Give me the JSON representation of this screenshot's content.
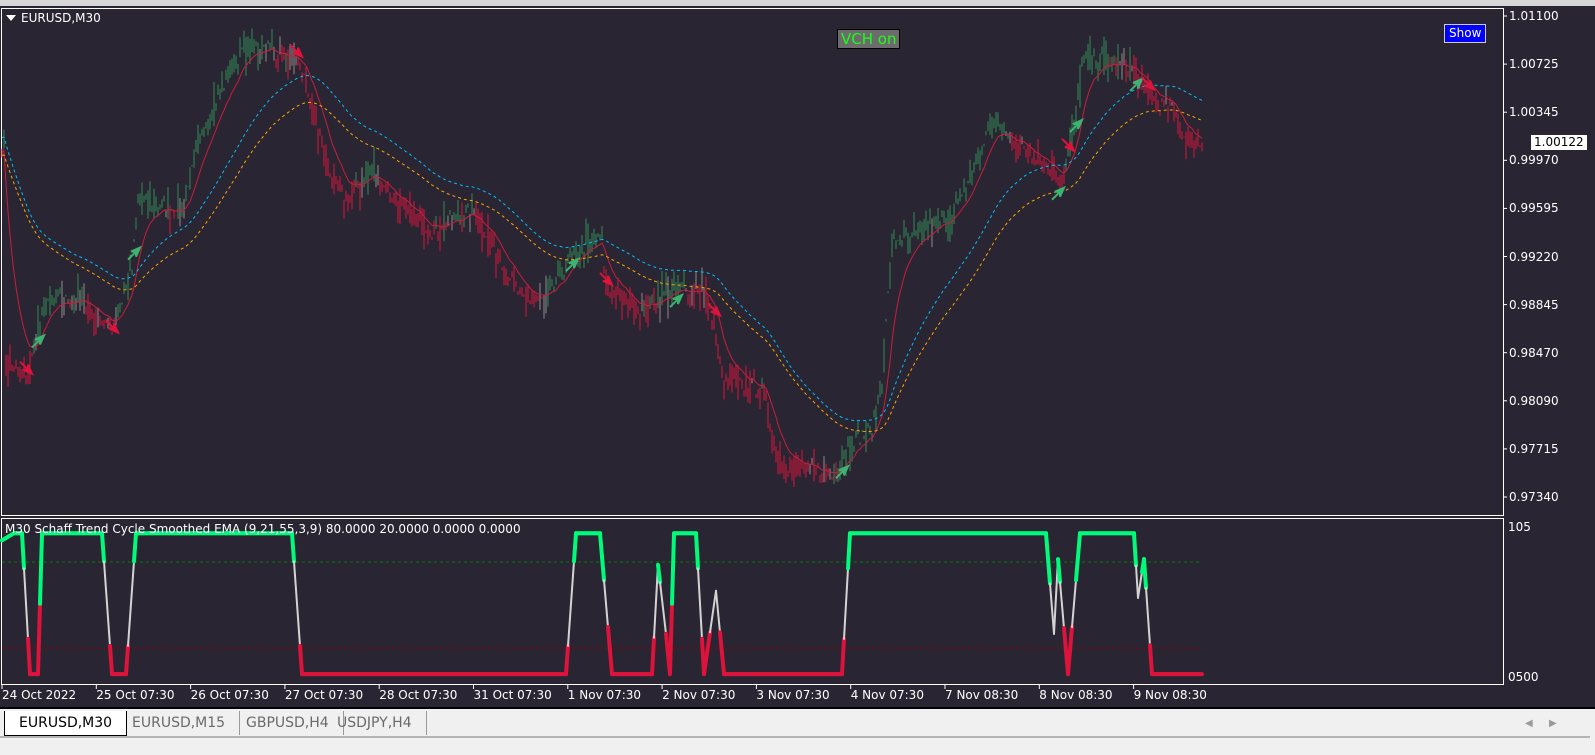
{
  "window": {
    "symbol_title": "EURUSD,M30"
  },
  "overlay": {
    "vch_label": "VCH on",
    "show_button": "Show",
    "current_price": "1.00122"
  },
  "indicator": {
    "title": "M30 Schaff Trend Cycle  Smoothed EMA  (9,21,55,3,9) 80.0000 20.0000 0.0000 0.0000",
    "axis_top": "105",
    "axis_bottom": "0500"
  },
  "tabs": [
    {
      "label": "EURUSD,M30",
      "active": true
    },
    {
      "label": "EURUSD,M15",
      "active": false
    },
    {
      "label": "GBPUSD,H4",
      "active": false
    },
    {
      "label": "USDJPY,H4",
      "active": false
    }
  ],
  "colors": {
    "background": "#2a2532",
    "bull": "#2e8b57",
    "bear": "#dc143c",
    "neutral": "#8c8c8c",
    "upper_band": "#00bfff",
    "lower_band": "#ffa500",
    "stc_high": "#00fa7a",
    "stc_low": "#dc143c",
    "stc_mid": "#d3d3d3",
    "level_high": "#008000",
    "level_low": "#8b0000"
  },
  "chart_data": [
    {
      "type": "bar",
      "symbol": "EURUSD",
      "timeframe": "M30",
      "ylim": [
        0.9734,
        1.011
      ],
      "y_ticks": [
        "1.01100",
        "1.00725",
        "1.00345",
        "0.99970",
        "0.99595",
        "0.99220",
        "0.98845",
        "0.98470",
        "0.98090",
        "0.97715",
        "0.97340"
      ],
      "x_ticks": [
        "24 Oct 2022",
        "25 Oct 07:30",
        "26 Oct 07:30",
        "27 Oct 07:30",
        "28 Oct 07:30",
        "31 Oct 07:30",
        "1 Nov 07:30",
        "2 Nov 07:30",
        "3 Nov 07:30",
        "4 Nov 07:30",
        "7 Nov 08:30",
        "8 Nov 08:30",
        "9 Nov 08:30"
      ],
      "price_path_bar_price": [
        [
          2,
          0.9841
        ],
        [
          12,
          0.9825
        ],
        [
          22,
          0.9888
        ],
        [
          40,
          0.9888
        ],
        [
          55,
          0.9865
        ],
        [
          65,
          0.9911
        ],
        [
          68,
          0.9966
        ],
        [
          90,
          0.9958
        ],
        [
          102,
          1.0029
        ],
        [
          120,
          1.0083
        ],
        [
          132,
          1.0087
        ],
        [
          150,
          1.0068
        ],
        [
          158,
          1.0021
        ],
        [
          165,
          0.9982
        ],
        [
          172,
          0.9966
        ],
        [
          185,
          0.999
        ],
        [
          200,
          0.9958
        ],
        [
          215,
          0.9943
        ],
        [
          235,
          0.9958
        ],
        [
          250,
          0.9919
        ],
        [
          260,
          0.9888
        ],
        [
          272,
          0.9888
        ],
        [
          287,
          0.9927
        ],
        [
          300,
          0.9935
        ],
        [
          302,
          0.9896
        ],
        [
          320,
          0.988
        ],
        [
          335,
          0.9896
        ],
        [
          350,
          0.9896
        ],
        [
          356,
          0.9872
        ],
        [
          360,
          0.9825
        ],
        [
          380,
          0.9818
        ],
        [
          388,
          0.9763
        ],
        [
          400,
          0.9755
        ],
        [
          415,
          0.9751
        ],
        [
          425,
          0.9778
        ],
        [
          435,
          0.9786
        ],
        [
          440,
          0.9825
        ],
        [
          445,
          0.9935
        ],
        [
          455,
          0.9935
        ],
        [
          470,
          0.995
        ],
        [
          480,
          0.9966
        ],
        [
          495,
          1.0029
        ],
        [
          505,
          1.0013
        ],
        [
          520,
          0.9997
        ],
        [
          530,
          0.9982
        ],
        [
          537,
          1.0029
        ],
        [
          540,
          1.0076
        ],
        [
          550,
          1.0076
        ],
        [
          565,
          1.0068
        ],
        [
          575,
          1.0044
        ],
        [
          585,
          1.0037
        ],
        [
          592,
          1.0013
        ],
        [
          600,
          1.0009
        ]
      ],
      "current_price": 1.00122
    },
    {
      "type": "line",
      "title": "M30 Schaff Trend Cycle  Smoothed EMA  (9,21,55,3,9)",
      "ylim": [
        0,
        105
      ],
      "levels": [
        80,
        20
      ],
      "stc_bar_value": [
        [
          0,
          95
        ],
        [
          6,
          100
        ],
        [
          10,
          100
        ],
        [
          14,
          2
        ],
        [
          18,
          2
        ],
        [
          20,
          100
        ],
        [
          50,
          100
        ],
        [
          55,
          2
        ],
        [
          62,
          2
        ],
        [
          67,
          100
        ],
        [
          145,
          100
        ],
        [
          150,
          2
        ],
        [
          282,
          2
        ],
        [
          287,
          100
        ],
        [
          299,
          100
        ],
        [
          305,
          2
        ],
        [
          325,
          2
        ],
        [
          328,
          78
        ],
        [
          332,
          30
        ],
        [
          334,
          2
        ],
        [
          336,
          100
        ],
        [
          347,
          100
        ],
        [
          351,
          2
        ],
        [
          357,
          60
        ],
        [
          361,
          2
        ],
        [
          420,
          2
        ],
        [
          424,
          100
        ],
        [
          522,
          100
        ],
        [
          526,
          30
        ],
        [
          528,
          82
        ],
        [
          533,
          2
        ],
        [
          539,
          100
        ],
        [
          566,
          100
        ],
        [
          568,
          55
        ],
        [
          571,
          82
        ],
        [
          575,
          2
        ],
        [
          600,
          2
        ]
      ]
    }
  ]
}
